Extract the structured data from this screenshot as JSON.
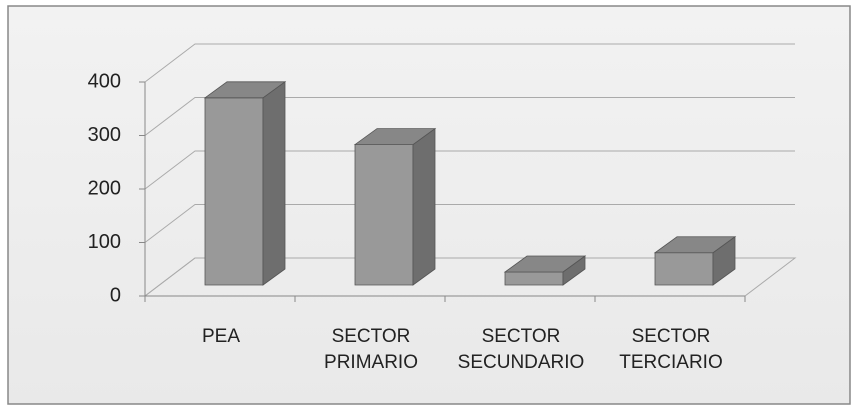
{
  "chart_data": {
    "type": "bar3d",
    "categories": [
      "PEA",
      "SECTOR PRIMARIO",
      "SECTOR SECUNDARIO",
      "SECTOR TERCIARIO"
    ],
    "values": [
      360,
      270,
      25,
      62
    ],
    "color": "#999999",
    "ylim": [
      0,
      400
    ],
    "yticks": [
      0,
      100,
      200,
      300,
      400
    ],
    "grid": true
  }
}
